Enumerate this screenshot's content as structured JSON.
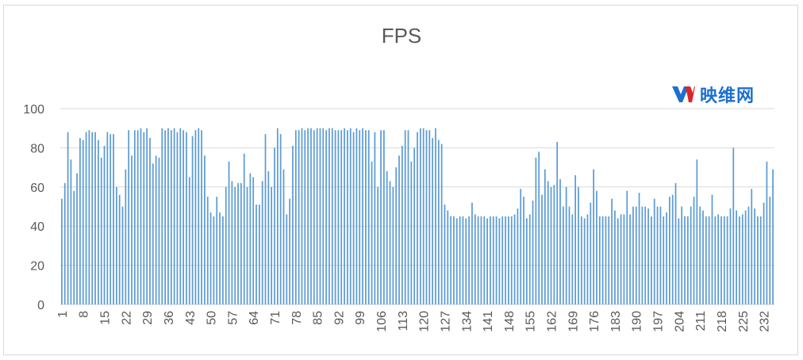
{
  "chart_data": {
    "type": "bar",
    "title": "FPS",
    "xlabel": "",
    "ylabel": "",
    "ylim": [
      0,
      100
    ],
    "yticks": [
      0,
      20,
      40,
      60,
      80,
      100
    ],
    "xtick_labels": [
      "1",
      "8",
      "15",
      "22",
      "29",
      "36",
      "43",
      "50",
      "57",
      "64",
      "71",
      "78",
      "85",
      "92",
      "99",
      "106",
      "113",
      "120",
      "127",
      "134",
      "141",
      "148",
      "155",
      "162",
      "169",
      "176",
      "183",
      "190",
      "197",
      "204",
      "211",
      "218",
      "225",
      "232"
    ],
    "grid": "horizontal",
    "bar_color": "#5b9bd5",
    "series": [
      {
        "values": [
          54,
          62,
          88,
          74,
          58,
          67,
          85,
          84,
          88,
          89,
          88,
          88,
          84,
          75,
          81,
          88,
          87,
          87,
          60,
          56,
          50,
          69,
          89,
          76,
          89,
          89,
          90,
          88,
          90,
          85,
          72,
          76,
          75,
          90,
          89,
          90,
          89,
          90,
          88,
          90,
          89,
          88,
          65,
          86,
          89,
          90,
          89,
          76,
          55,
          47,
          45,
          55,
          47,
          45,
          60,
          73,
          63,
          60,
          62,
          62,
          77,
          60,
          67,
          65,
          51,
          51,
          63,
          87,
          68,
          60,
          80,
          90,
          87,
          69,
          46,
          54,
          81,
          89,
          89,
          90,
          89,
          90,
          90,
          89,
          90,
          90,
          90,
          89,
          90,
          90,
          89,
          89,
          89,
          90,
          89,
          90,
          88,
          90,
          89,
          90,
          89,
          89,
          73,
          88,
          60,
          89,
          89,
          68,
          63,
          60,
          70,
          76,
          81,
          89,
          89,
          73,
          80,
          88,
          90,
          90,
          89,
          89,
          85,
          90,
          84,
          82,
          51,
          48,
          45,
          45,
          44,
          45,
          45,
          44,
          45,
          52,
          46,
          45,
          45,
          45,
          44,
          45,
          45,
          45,
          44,
          45,
          45,
          45,
          45,
          46,
          49,
          59,
          55,
          44,
          46,
          53,
          75,
          78,
          56,
          69,
          63,
          60,
          61,
          83,
          64,
          50,
          60,
          50,
          46,
          66,
          60,
          45,
          44,
          46,
          52,
          69,
          58,
          45,
          45,
          45,
          45,
          54,
          48,
          44,
          46,
          46,
          58,
          46,
          50,
          50,
          57,
          50,
          50,
          49,
          45,
          54,
          50,
          50,
          45,
          47,
          55,
          56,
          62,
          44,
          50,
          45,
          45,
          50,
          55,
          74,
          50,
          48,
          45,
          45,
          56,
          45,
          46,
          45,
          45,
          45,
          49,
          80,
          48,
          45,
          46,
          48,
          50,
          59,
          49,
          45,
          45,
          52,
          73,
          55,
          69
        ]
      }
    ]
  },
  "watermark": {
    "text": "映维网",
    "color": "#1d6fd0"
  }
}
